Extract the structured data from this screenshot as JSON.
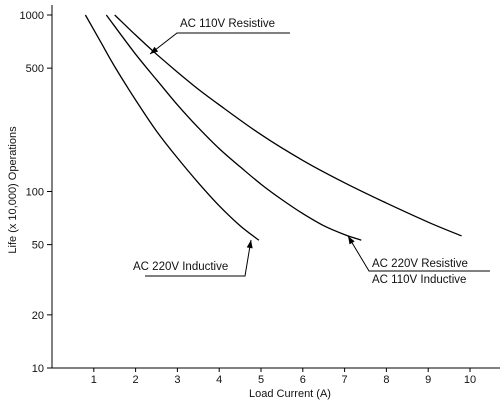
{
  "chart_data": {
    "type": "line",
    "xlabel": "Load Current (A)",
    "ylabel": "Life (x 10,000) Operations",
    "xlim": [
      0,
      10.5
    ],
    "ylim": [
      10,
      1000
    ],
    "yscale": "log",
    "x_ticks": [
      1,
      2,
      3,
      4,
      5,
      6,
      7,
      8,
      9,
      10
    ],
    "y_ticks": [
      10,
      20,
      50,
      100,
      500,
      1000
    ],
    "grid": false,
    "series": [
      {
        "name": "AC 220V Inductive",
        "points": [
          [
            0.8,
            1000
          ],
          [
            1.2,
            680
          ],
          [
            1.5,
            510
          ],
          [
            2.0,
            330
          ],
          [
            2.5,
            220
          ],
          [
            3.0,
            155
          ],
          [
            3.5,
            112
          ],
          [
            4.0,
            83
          ],
          [
            4.5,
            64
          ],
          [
            4.95,
            53
          ]
        ]
      },
      {
        "name": "AC 220V Resistive / AC 110V Inductive",
        "points": [
          [
            1.3,
            1000
          ],
          [
            2.0,
            600
          ],
          [
            2.5,
            430
          ],
          [
            3.0,
            310
          ],
          [
            3.5,
            230
          ],
          [
            4.0,
            175
          ],
          [
            4.5,
            138
          ],
          [
            5.0,
            110
          ],
          [
            5.5,
            90
          ],
          [
            6.0,
            75
          ],
          [
            6.5,
            64
          ],
          [
            7.0,
            57
          ],
          [
            7.4,
            53
          ]
        ]
      },
      {
        "name": "AC 110V Resistive",
        "points": [
          [
            1.5,
            1000
          ],
          [
            2.0,
            770
          ],
          [
            2.5,
            600
          ],
          [
            3.0,
            475
          ],
          [
            3.5,
            380
          ],
          [
            4.0,
            310
          ],
          [
            5.0,
            210
          ],
          [
            6.0,
            150
          ],
          [
            7.0,
            112
          ],
          [
            8.0,
            86
          ],
          [
            9.0,
            67
          ],
          [
            9.8,
            56
          ]
        ]
      }
    ],
    "annotations": [
      {
        "text": "AC 110V Resistive",
        "series": 2
      },
      {
        "text": "AC 220V Inductive",
        "series": 0
      },
      {
        "text": "AC 220V Resistive",
        "series": 1
      },
      {
        "text": "AC 110V Inductive",
        "series": 1
      }
    ]
  }
}
